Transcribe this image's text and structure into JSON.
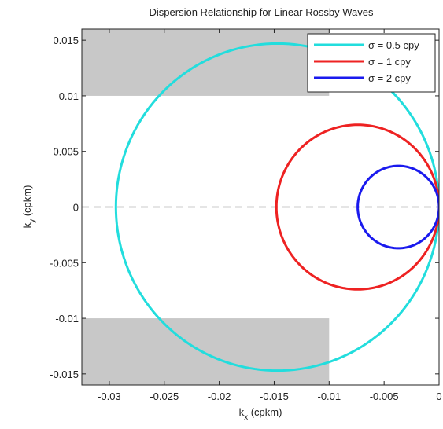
{
  "chart_data": {
    "type": "line",
    "title": "Dispersion Relationship for Linear Rossby Waves",
    "xlabel": {
      "main": "k",
      "sub": "x",
      "units": " (cpkm)"
    },
    "ylabel": {
      "main": "k",
      "sub": "y",
      "units": " (cpkm)"
    },
    "xlim": [
      -0.0325,
      0.0
    ],
    "ylim": [
      -0.016,
      0.016
    ],
    "xticks": [
      -0.03,
      -0.025,
      -0.02,
      -0.015,
      -0.01,
      -0.005,
      0.0
    ],
    "xticklabels": [
      "-0.03",
      "-0.025",
      "-0.02",
      "-0.015",
      "-0.01",
      "-0.005",
      "0"
    ],
    "yticks": [
      -0.015,
      -0.01,
      -0.005,
      0.0,
      0.005,
      0.01,
      0.015
    ],
    "yticklabels": [
      "-0.015",
      "-0.01",
      "-0.005",
      "0",
      "0.005",
      "0.01",
      "0.015"
    ],
    "grid": false,
    "legend_position": "top-right",
    "shaded_regions": [
      {
        "x": [
          -0.0325,
          -0.01
        ],
        "y": [
          0.01,
          0.016
        ],
        "color": "#c8c8c8"
      },
      {
        "x": [
          -0.0325,
          -0.01
        ],
        "y": [
          -0.016,
          -0.01
        ],
        "color": "#c8c8c8"
      }
    ],
    "reference_line": {
      "y": 0.0,
      "style": "dashed",
      "color": "#333333"
    },
    "series": [
      {
        "name": "σ = 0.5 cpy",
        "color": "#22dddd",
        "shape": "circle",
        "center": [
          -0.0147,
          0.0
        ],
        "radius": 0.0147
      },
      {
        "name": "σ = 1 cpy",
        "color": "#ee2222",
        "shape": "circle",
        "center": [
          -0.0074,
          0.0
        ],
        "radius": 0.0074
      },
      {
        "name": "σ = 2 cpy",
        "color": "#1a1aee",
        "shape": "circle",
        "center": [
          -0.0037,
          0.0
        ],
        "radius": 0.0037
      }
    ]
  }
}
